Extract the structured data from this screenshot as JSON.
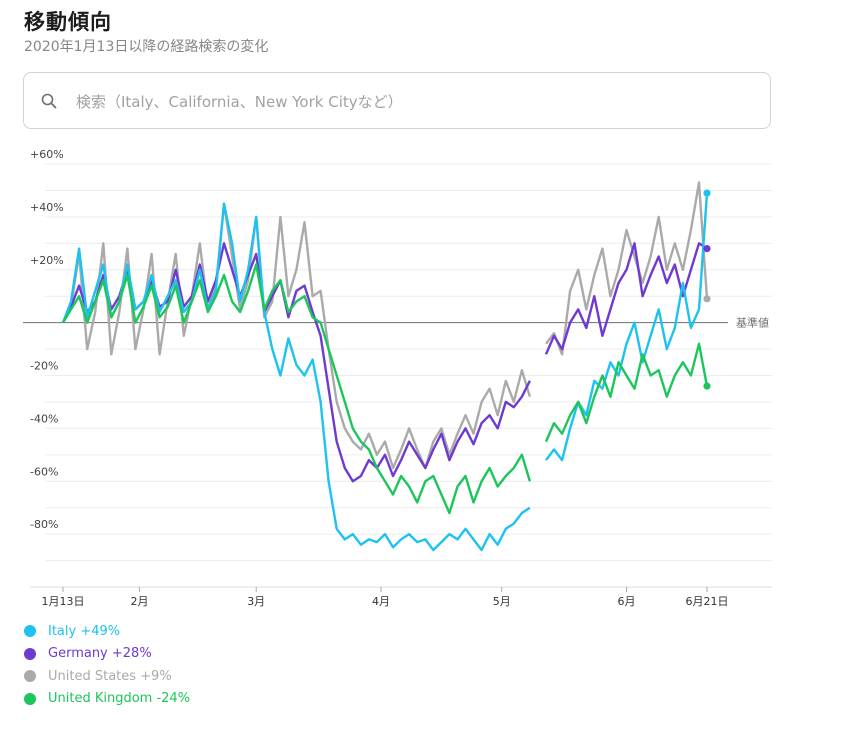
{
  "header": {
    "title": "移動傾向",
    "subtitle": "2020年1月13日以降の経路検索の変化"
  },
  "search": {
    "placeholder": "検索（Italy、California、New York Cityなど）",
    "value": "",
    "icon": "search-icon"
  },
  "legend": [
    {
      "label": "Italy +49%",
      "color": "#1dc2f0"
    },
    {
      "label": "Germany +28%",
      "color": "#6e3ad1"
    },
    {
      "label": "United States +9%",
      "color": "#aaaaaa"
    },
    {
      "label": "United Kingdom -24%",
      "color": "#1cc65a"
    }
  ],
  "chart_data": {
    "type": "line",
    "ylim": [
      -100,
      60
    ],
    "yticks": [
      60,
      40,
      20,
      0,
      -20,
      -40,
      -60,
      -80
    ],
    "ytick_labels": [
      "+60%",
      "+40%",
      "+20%",
      "",
      "-20%",
      "-40%",
      "-60%",
      "-80%"
    ],
    "baseline_label": "基準値",
    "xticks": [
      {
        "day": 0,
        "label": "1月13日"
      },
      {
        "day": 19,
        "label": "2月"
      },
      {
        "day": 48,
        "label": "3月"
      },
      {
        "day": 79,
        "label": "4月"
      },
      {
        "day": 109,
        "label": "5月"
      },
      {
        "day": 140,
        "label": "6月"
      },
      {
        "day": 160,
        "label": "6月21日"
      }
    ],
    "x_range": [
      0,
      160
    ],
    "gap": [
      116,
      120
    ],
    "grid": true,
    "series": [
      {
        "name": "Italy",
        "color": "#1dc2f0",
        "points": [
          [
            0,
            0
          ],
          [
            2,
            8
          ],
          [
            4,
            28
          ],
          [
            6,
            2
          ],
          [
            8,
            12
          ],
          [
            10,
            22
          ],
          [
            12,
            2
          ],
          [
            14,
            8
          ],
          [
            16,
            22
          ],
          [
            18,
            5
          ],
          [
            20,
            8
          ],
          [
            22,
            18
          ],
          [
            24,
            4
          ],
          [
            26,
            10
          ],
          [
            28,
            16
          ],
          [
            30,
            4
          ],
          [
            32,
            8
          ],
          [
            34,
            20
          ],
          [
            36,
            5
          ],
          [
            38,
            12
          ],
          [
            40,
            45
          ],
          [
            42,
            30
          ],
          [
            44,
            8
          ],
          [
            46,
            20
          ],
          [
            48,
            40
          ],
          [
            50,
            4
          ],
          [
            52,
            -10
          ],
          [
            54,
            -20
          ],
          [
            56,
            -6
          ],
          [
            58,
            -16
          ],
          [
            60,
            -20
          ],
          [
            62,
            -14
          ],
          [
            64,
            -30
          ],
          [
            66,
            -60
          ],
          [
            68,
            -78
          ],
          [
            70,
            -82
          ],
          [
            72,
            -80
          ],
          [
            74,
            -84
          ],
          [
            76,
            -82
          ],
          [
            78,
            -83
          ],
          [
            80,
            -80
          ],
          [
            82,
            -85
          ],
          [
            84,
            -82
          ],
          [
            86,
            -80
          ],
          [
            88,
            -83
          ],
          [
            90,
            -82
          ],
          [
            92,
            -86
          ],
          [
            94,
            -83
          ],
          [
            96,
            -80
          ],
          [
            98,
            -82
          ],
          [
            100,
            -78
          ],
          [
            102,
            -82
          ],
          [
            104,
            -86
          ],
          [
            106,
            -80
          ],
          [
            108,
            -84
          ],
          [
            110,
            -78
          ],
          [
            112,
            -76
          ],
          [
            114,
            -72
          ],
          [
            116,
            -70
          ],
          [
            120,
            -52
          ],
          [
            122,
            -48
          ],
          [
            124,
            -52
          ],
          [
            126,
            -40
          ],
          [
            128,
            -30
          ],
          [
            130,
            -35
          ],
          [
            132,
            -22
          ],
          [
            134,
            -25
          ],
          [
            136,
            -15
          ],
          [
            138,
            -20
          ],
          [
            140,
            -8
          ],
          [
            142,
            0
          ],
          [
            144,
            -15
          ],
          [
            146,
            -5
          ],
          [
            148,
            5
          ],
          [
            150,
            -10
          ],
          [
            152,
            -2
          ],
          [
            154,
            15
          ],
          [
            156,
            -2
          ],
          [
            158,
            5
          ],
          [
            160,
            49
          ]
        ]
      },
      {
        "name": "Germany",
        "color": "#6e3ad1",
        "points": [
          [
            0,
            0
          ],
          [
            2,
            6
          ],
          [
            4,
            14
          ],
          [
            6,
            4
          ],
          [
            8,
            8
          ],
          [
            10,
            18
          ],
          [
            12,
            5
          ],
          [
            14,
            10
          ],
          [
            16,
            20
          ],
          [
            18,
            5
          ],
          [
            20,
            8
          ],
          [
            22,
            16
          ],
          [
            24,
            6
          ],
          [
            26,
            8
          ],
          [
            28,
            20
          ],
          [
            30,
            6
          ],
          [
            32,
            10
          ],
          [
            34,
            22
          ],
          [
            36,
            8
          ],
          [
            38,
            16
          ],
          [
            40,
            30
          ],
          [
            42,
            20
          ],
          [
            44,
            10
          ],
          [
            46,
            18
          ],
          [
            48,
            26
          ],
          [
            50,
            4
          ],
          [
            52,
            10
          ],
          [
            54,
            16
          ],
          [
            56,
            2
          ],
          [
            58,
            12
          ],
          [
            60,
            14
          ],
          [
            62,
            4
          ],
          [
            64,
            -5
          ],
          [
            66,
            -25
          ],
          [
            68,
            -45
          ],
          [
            70,
            -55
          ],
          [
            72,
            -60
          ],
          [
            74,
            -58
          ],
          [
            76,
            -52
          ],
          [
            78,
            -55
          ],
          [
            80,
            -50
          ],
          [
            82,
            -58
          ],
          [
            84,
            -52
          ],
          [
            86,
            -45
          ],
          [
            88,
            -50
          ],
          [
            90,
            -55
          ],
          [
            92,
            -48
          ],
          [
            94,
            -42
          ],
          [
            96,
            -52
          ],
          [
            98,
            -45
          ],
          [
            100,
            -40
          ],
          [
            102,
            -46
          ],
          [
            104,
            -38
          ],
          [
            106,
            -35
          ],
          [
            108,
            -40
          ],
          [
            110,
            -30
          ],
          [
            112,
            -32
          ],
          [
            114,
            -28
          ],
          [
            116,
            -22
          ],
          [
            120,
            -12
          ],
          [
            122,
            -5
          ],
          [
            124,
            -10
          ],
          [
            126,
            0
          ],
          [
            128,
            5
          ],
          [
            130,
            -2
          ],
          [
            132,
            10
          ],
          [
            134,
            -5
          ],
          [
            136,
            5
          ],
          [
            138,
            15
          ],
          [
            140,
            20
          ],
          [
            142,
            30
          ],
          [
            144,
            10
          ],
          [
            146,
            18
          ],
          [
            148,
            25
          ],
          [
            150,
            15
          ],
          [
            152,
            22
          ],
          [
            154,
            10
          ],
          [
            156,
            20
          ],
          [
            158,
            30
          ],
          [
            160,
            28
          ]
        ]
      },
      {
        "name": "United States",
        "color": "#aaaaaa",
        "points": [
          [
            0,
            0
          ],
          [
            2,
            6
          ],
          [
            4,
            26
          ],
          [
            6,
            -10
          ],
          [
            8,
            4
          ],
          [
            10,
            30
          ],
          [
            12,
            -12
          ],
          [
            14,
            4
          ],
          [
            16,
            28
          ],
          [
            18,
            -10
          ],
          [
            20,
            5
          ],
          [
            22,
            26
          ],
          [
            24,
            -12
          ],
          [
            26,
            8
          ],
          [
            28,
            26
          ],
          [
            30,
            -5
          ],
          [
            32,
            10
          ],
          [
            34,
            30
          ],
          [
            36,
            5
          ],
          [
            38,
            14
          ],
          [
            40,
            45
          ],
          [
            42,
            25
          ],
          [
            44,
            5
          ],
          [
            46,
            16
          ],
          [
            48,
            40
          ],
          [
            50,
            2
          ],
          [
            52,
            8
          ],
          [
            54,
            40
          ],
          [
            56,
            10
          ],
          [
            58,
            20
          ],
          [
            60,
            38
          ],
          [
            62,
            10
          ],
          [
            64,
            12
          ],
          [
            66,
            -10
          ],
          [
            68,
            -30
          ],
          [
            70,
            -40
          ],
          [
            72,
            -45
          ],
          [
            74,
            -48
          ],
          [
            76,
            -42
          ],
          [
            78,
            -50
          ],
          [
            80,
            -45
          ],
          [
            82,
            -55
          ],
          [
            84,
            -48
          ],
          [
            86,
            -40
          ],
          [
            88,
            -48
          ],
          [
            90,
            -55
          ],
          [
            92,
            -45
          ],
          [
            94,
            -40
          ],
          [
            96,
            -50
          ],
          [
            98,
            -42
          ],
          [
            100,
            -35
          ],
          [
            102,
            -42
          ],
          [
            104,
            -30
          ],
          [
            106,
            -25
          ],
          [
            108,
            -35
          ],
          [
            110,
            -22
          ],
          [
            112,
            -30
          ],
          [
            114,
            -18
          ],
          [
            116,
            -28
          ],
          [
            120,
            -8
          ],
          [
            122,
            -4
          ],
          [
            124,
            -12
          ],
          [
            126,
            12
          ],
          [
            128,
            20
          ],
          [
            130,
            5
          ],
          [
            132,
            18
          ],
          [
            134,
            28
          ],
          [
            136,
            10
          ],
          [
            138,
            20
          ],
          [
            140,
            35
          ],
          [
            142,
            25
          ],
          [
            144,
            15
          ],
          [
            146,
            25
          ],
          [
            148,
            40
          ],
          [
            150,
            20
          ],
          [
            152,
            30
          ],
          [
            154,
            20
          ],
          [
            156,
            35
          ],
          [
            158,
            53
          ],
          [
            160,
            9
          ]
        ]
      },
      {
        "name": "United Kingdom",
        "color": "#1cc65a",
        "points": [
          [
            0,
            0
          ],
          [
            2,
            5
          ],
          [
            4,
            10
          ],
          [
            6,
            0
          ],
          [
            8,
            8
          ],
          [
            10,
            16
          ],
          [
            12,
            2
          ],
          [
            14,
            8
          ],
          [
            16,
            18
          ],
          [
            18,
            0
          ],
          [
            20,
            6
          ],
          [
            22,
            14
          ],
          [
            24,
            2
          ],
          [
            26,
            6
          ],
          [
            28,
            14
          ],
          [
            30,
            0
          ],
          [
            32,
            8
          ],
          [
            34,
            16
          ],
          [
            36,
            4
          ],
          [
            38,
            10
          ],
          [
            40,
            18
          ],
          [
            42,
            8
          ],
          [
            44,
            4
          ],
          [
            46,
            12
          ],
          [
            48,
            22
          ],
          [
            50,
            5
          ],
          [
            52,
            12
          ],
          [
            54,
            16
          ],
          [
            56,
            4
          ],
          [
            58,
            8
          ],
          [
            60,
            10
          ],
          [
            62,
            2
          ],
          [
            64,
            0
          ],
          [
            66,
            -10
          ],
          [
            68,
            -20
          ],
          [
            70,
            -30
          ],
          [
            72,
            -40
          ],
          [
            74,
            -45
          ],
          [
            76,
            -48
          ],
          [
            78,
            -55
          ],
          [
            80,
            -60
          ],
          [
            82,
            -65
          ],
          [
            84,
            -58
          ],
          [
            86,
            -62
          ],
          [
            88,
            -68
          ],
          [
            90,
            -60
          ],
          [
            92,
            -58
          ],
          [
            94,
            -65
          ],
          [
            96,
            -72
          ],
          [
            98,
            -62
          ],
          [
            100,
            -58
          ],
          [
            102,
            -68
          ],
          [
            104,
            -60
          ],
          [
            106,
            -55
          ],
          [
            108,
            -62
          ],
          [
            110,
            -58
          ],
          [
            112,
            -55
          ],
          [
            114,
            -50
          ],
          [
            116,
            -60
          ],
          [
            120,
            -45
          ],
          [
            122,
            -38
          ],
          [
            124,
            -42
          ],
          [
            126,
            -35
          ],
          [
            128,
            -30
          ],
          [
            130,
            -38
          ],
          [
            132,
            -28
          ],
          [
            134,
            -20
          ],
          [
            136,
            -28
          ],
          [
            138,
            -15
          ],
          [
            140,
            -20
          ],
          [
            142,
            -25
          ],
          [
            144,
            -12
          ],
          [
            146,
            -20
          ],
          [
            148,
            -18
          ],
          [
            150,
            -28
          ],
          [
            152,
            -20
          ],
          [
            154,
            -15
          ],
          [
            156,
            -20
          ],
          [
            158,
            -8
          ],
          [
            160,
            -24
          ]
        ]
      }
    ]
  }
}
